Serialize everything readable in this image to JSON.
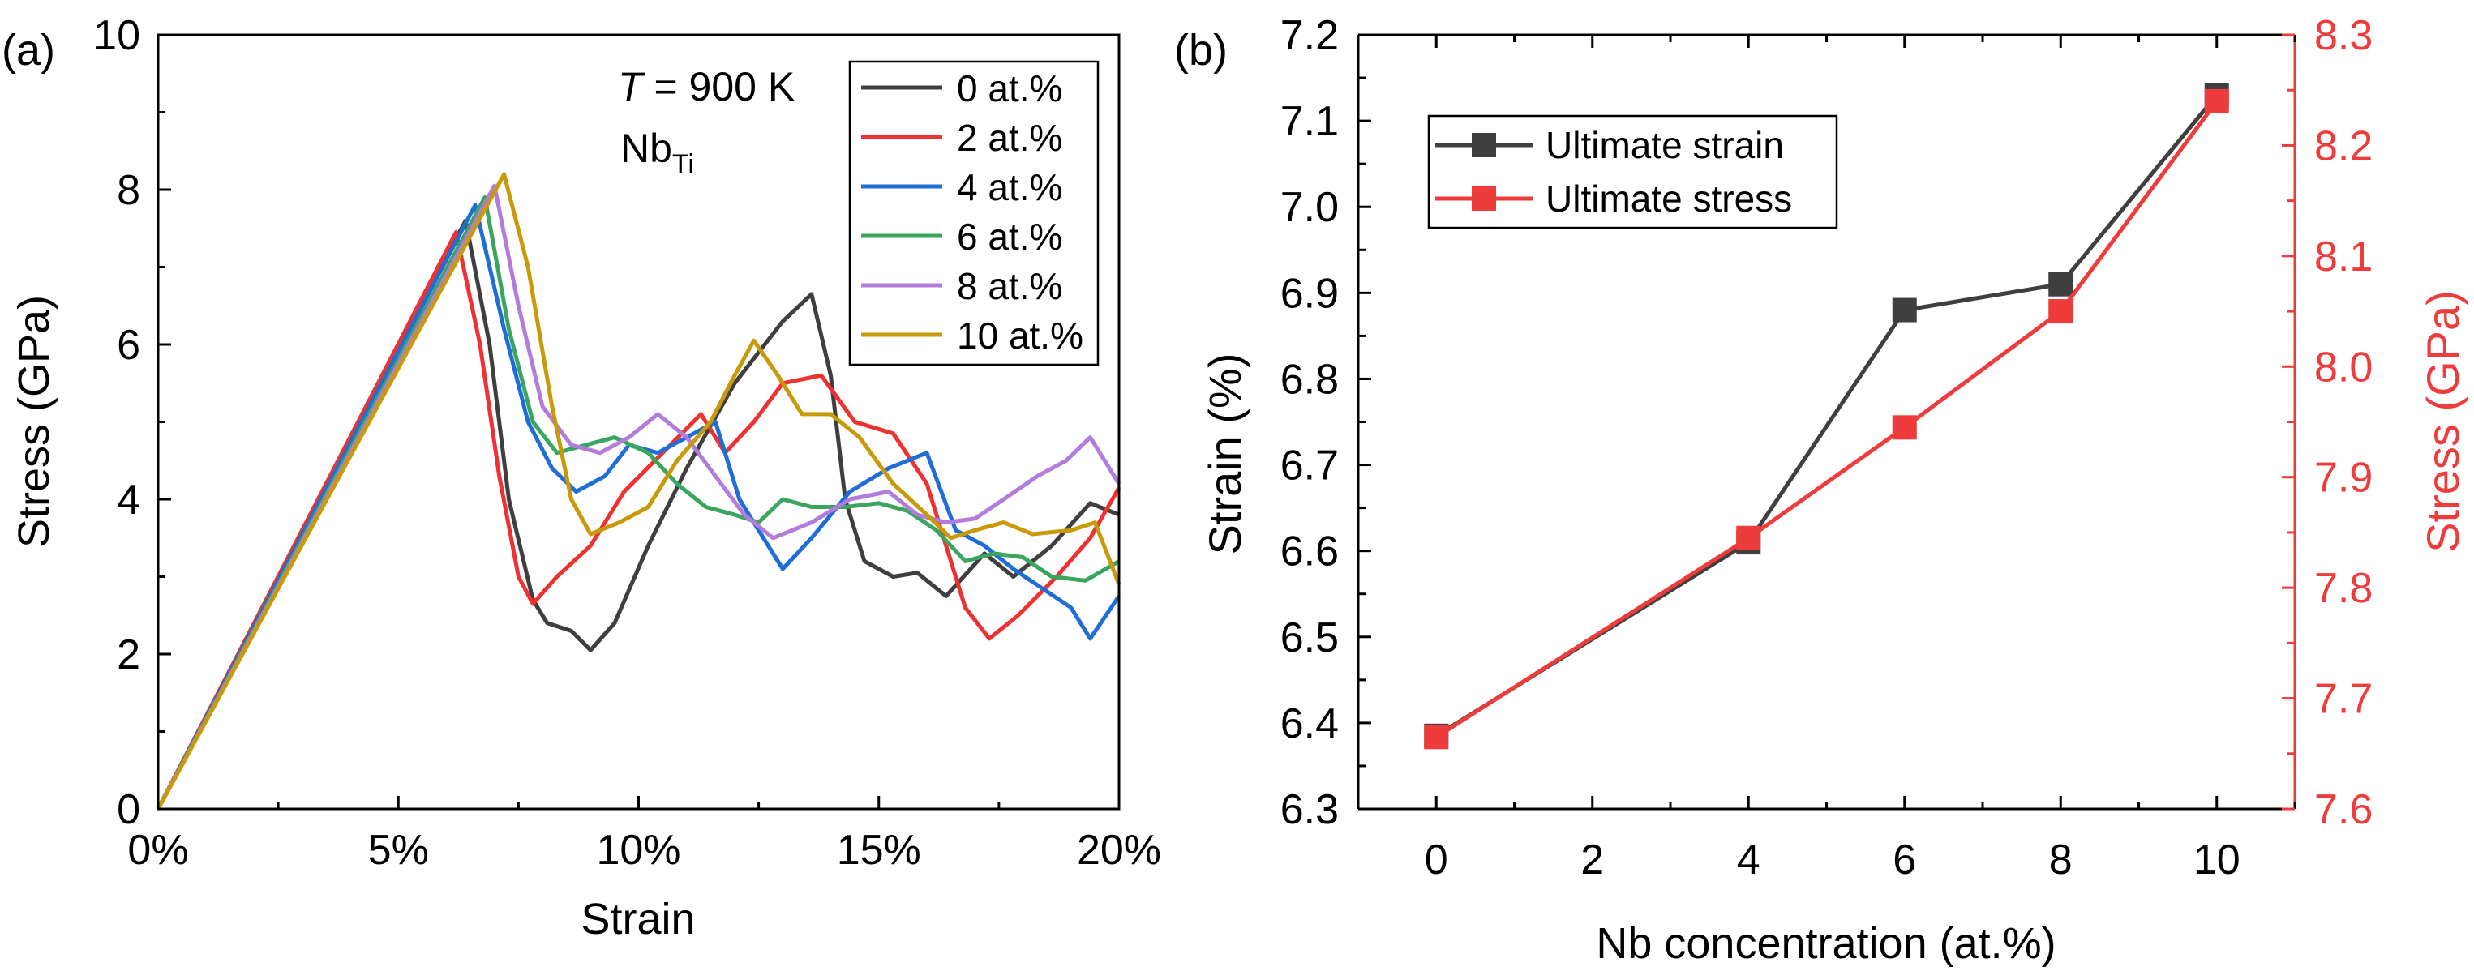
{
  "chart_data": [
    {
      "panel_label": "(a)",
      "type": "line",
      "xlabel": "Strain",
      "ylabel": "Stress (GPa)",
      "xlim": [
        0,
        20
      ],
      "ylim": [
        0,
        10
      ],
      "x_ticks": [
        0,
        5,
        10,
        15,
        20
      ],
      "x_tick_labels": [
        "0%",
        "5%",
        "10%",
        "15%",
        "20%"
      ],
      "y_ticks": [
        0,
        2,
        4,
        6,
        8,
        10
      ],
      "y_tick_labels": [
        "0",
        "2",
        "4",
        "6",
        "8",
        "10"
      ],
      "grid": false,
      "legend_position": "top-right",
      "annotation": {
        "T_symbol": "T",
        "T_text": " = 900 K",
        "dopant_main": "Nb",
        "dopant_sub": "Ti"
      },
      "series": [
        {
          "name": "0 at.%",
          "color": "#3f3f3f",
          "points": [
            [
              0,
              0
            ],
            [
              6.4,
              7.6
            ],
            [
              6.9,
              6.0
            ],
            [
              7.3,
              4.0
            ],
            [
              7.8,
              2.7
            ],
            [
              8.1,
              2.4
            ],
            [
              8.6,
              2.3
            ],
            [
              9.0,
              2.05
            ],
            [
              9.5,
              2.4
            ],
            [
              10.2,
              3.4
            ],
            [
              11.0,
              4.4
            ],
            [
              12.0,
              5.5
            ],
            [
              13.0,
              6.3
            ],
            [
              13.6,
              6.65
            ],
            [
              14.0,
              5.6
            ],
            [
              14.3,
              4.0
            ],
            [
              14.7,
              3.2
            ],
            [
              15.3,
              3.0
            ],
            [
              15.8,
              3.05
            ],
            [
              16.4,
              2.75
            ],
            [
              17.2,
              3.3
            ],
            [
              17.8,
              3.0
            ],
            [
              18.6,
              3.4
            ],
            [
              19.4,
              3.95
            ],
            [
              20.0,
              3.8
            ]
          ]
        },
        {
          "name": "2 at.%",
          "color": "#ee3131",
          "points": [
            [
              0,
              0
            ],
            [
              6.2,
              7.45
            ],
            [
              6.7,
              6.0
            ],
            [
              7.1,
              4.3
            ],
            [
              7.5,
              3.0
            ],
            [
              7.8,
              2.65
            ],
            [
              8.3,
              3.0
            ],
            [
              9.0,
              3.4
            ],
            [
              9.7,
              4.1
            ],
            [
              10.5,
              4.6
            ],
            [
              11.3,
              5.1
            ],
            [
              11.8,
              4.6
            ],
            [
              12.4,
              5.0
            ],
            [
              13.0,
              5.5
            ],
            [
              13.8,
              5.6
            ],
            [
              14.5,
              5.0
            ],
            [
              15.3,
              4.85
            ],
            [
              16.0,
              4.2
            ],
            [
              16.8,
              2.6
            ],
            [
              17.3,
              2.2
            ],
            [
              17.9,
              2.5
            ],
            [
              18.7,
              3.0
            ],
            [
              19.4,
              3.5
            ],
            [
              20.0,
              4.15
            ]
          ]
        },
        {
          "name": "4 at.%",
          "color": "#1f6dd6",
          "points": [
            [
              0,
              0
            ],
            [
              6.6,
              7.8
            ],
            [
              7.2,
              6.2
            ],
            [
              7.7,
              5.0
            ],
            [
              8.2,
              4.4
            ],
            [
              8.7,
              4.1
            ],
            [
              9.3,
              4.3
            ],
            [
              9.8,
              4.7
            ],
            [
              10.4,
              4.6
            ],
            [
              11.0,
              4.8
            ],
            [
              11.6,
              5.0
            ],
            [
              12.1,
              4.0
            ],
            [
              12.6,
              3.5
            ],
            [
              13.0,
              3.1
            ],
            [
              13.6,
              3.5
            ],
            [
              14.4,
              4.1
            ],
            [
              15.2,
              4.4
            ],
            [
              16.0,
              4.6
            ],
            [
              16.6,
              3.6
            ],
            [
              17.2,
              3.4
            ],
            [
              17.8,
              3.1
            ],
            [
              18.4,
              2.85
            ],
            [
              19.0,
              2.6
            ],
            [
              19.4,
              2.2
            ],
            [
              20.0,
              2.75
            ]
          ]
        },
        {
          "name": "6 at.%",
          "color": "#3aa55e",
          "points": [
            [
              0,
              0
            ],
            [
              6.8,
              7.9
            ],
            [
              7.3,
              6.2
            ],
            [
              7.8,
              5.0
            ],
            [
              8.3,
              4.6
            ],
            [
              8.9,
              4.7
            ],
            [
              9.5,
              4.8
            ],
            [
              10.2,
              4.6
            ],
            [
              10.8,
              4.2
            ],
            [
              11.4,
              3.9
            ],
            [
              12.0,
              3.8
            ],
            [
              12.5,
              3.7
            ],
            [
              13.0,
              4.0
            ],
            [
              13.6,
              3.9
            ],
            [
              14.3,
              3.9
            ],
            [
              15.0,
              3.95
            ],
            [
              15.6,
              3.85
            ],
            [
              16.2,
              3.6
            ],
            [
              16.8,
              3.2
            ],
            [
              17.4,
              3.3
            ],
            [
              18.0,
              3.25
            ],
            [
              18.6,
              3.0
            ],
            [
              19.3,
              2.95
            ],
            [
              20.0,
              3.2
            ]
          ]
        },
        {
          "name": "8 at.%",
          "color": "#b27bdc",
          "points": [
            [
              0,
              0
            ],
            [
              7.0,
              8.05
            ],
            [
              7.5,
              6.5
            ],
            [
              8.0,
              5.2
            ],
            [
              8.6,
              4.7
            ],
            [
              9.2,
              4.6
            ],
            [
              9.8,
              4.8
            ],
            [
              10.4,
              5.1
            ],
            [
              11.0,
              4.8
            ],
            [
              11.6,
              4.3
            ],
            [
              12.2,
              3.8
            ],
            [
              12.8,
              3.5
            ],
            [
              13.6,
              3.7
            ],
            [
              14.4,
              4.0
            ],
            [
              15.2,
              4.1
            ],
            [
              15.8,
              3.8
            ],
            [
              16.4,
              3.7
            ],
            [
              17.0,
              3.75
            ],
            [
              17.6,
              4.0
            ],
            [
              18.3,
              4.3
            ],
            [
              18.9,
              4.5
            ],
            [
              19.4,
              4.8
            ],
            [
              20.0,
              4.2
            ]
          ]
        },
        {
          "name": "10 at.%",
          "color": "#c89a0a",
          "points": [
            [
              0,
              0
            ],
            [
              7.2,
              8.2
            ],
            [
              7.7,
              7.0
            ],
            [
              8.2,
              5.2
            ],
            [
              8.6,
              4.0
            ],
            [
              9.0,
              3.55
            ],
            [
              9.6,
              3.7
            ],
            [
              10.2,
              3.9
            ],
            [
              10.8,
              4.5
            ],
            [
              11.5,
              5.0
            ],
            [
              12.0,
              5.6
            ],
            [
              12.4,
              6.05
            ],
            [
              12.9,
              5.6
            ],
            [
              13.4,
              5.1
            ],
            [
              14.0,
              5.1
            ],
            [
              14.6,
              4.8
            ],
            [
              15.3,
              4.2
            ],
            [
              16.0,
              3.8
            ],
            [
              16.5,
              3.5
            ],
            [
              17.0,
              3.6
            ],
            [
              17.6,
              3.7
            ],
            [
              18.2,
              3.55
            ],
            [
              19.0,
              3.6
            ],
            [
              19.5,
              3.7
            ],
            [
              20.0,
              2.9
            ]
          ]
        }
      ]
    },
    {
      "panel_label": "(b)",
      "type": "line",
      "xlabel": "Nb concentration (at.%)",
      "ylabel": "Strain (%)",
      "y2label": "Stress (GPa)",
      "xlim": [
        -1,
        11
      ],
      "ylim": [
        6.3,
        7.2
      ],
      "y2lim": [
        7.6,
        8.3
      ],
      "x_ticks": [
        0,
        2,
        4,
        6,
        8,
        10
      ],
      "x_tick_labels": [
        "0",
        "2",
        "4",
        "6",
        "8",
        "10"
      ],
      "y_ticks": [
        6.3,
        6.4,
        6.5,
        6.6,
        6.7,
        6.8,
        6.9,
        7.0,
        7.1,
        7.2
      ],
      "y_tick_labels": [
        "6.3",
        "6.4",
        "6.5",
        "6.6",
        "6.7",
        "6.8",
        "6.9",
        "7.0",
        "7.1",
        "7.2"
      ],
      "y2_ticks": [
        7.6,
        7.7,
        7.8,
        7.9,
        8.0,
        8.1,
        8.2,
        8.3
      ],
      "y2_tick_labels": [
        "7.6",
        "7.7",
        "7.8",
        "7.9",
        "8.0",
        "8.1",
        "8.2",
        "8.3"
      ],
      "grid": false,
      "legend_position": "top-left",
      "x": [
        0,
        4,
        6,
        8,
        10
      ],
      "series": [
        {
          "name": "Ultimate strain",
          "color": "#3f3f3f",
          "axis": "left",
          "values": [
            6.385,
            6.61,
            6.88,
            6.91,
            7.13
          ]
        },
        {
          "name": "Ultimate stress",
          "color": "#ee3b3b",
          "axis": "right",
          "values": [
            7.665,
            7.845,
            7.945,
            8.05,
            8.24
          ]
        }
      ]
    }
  ]
}
